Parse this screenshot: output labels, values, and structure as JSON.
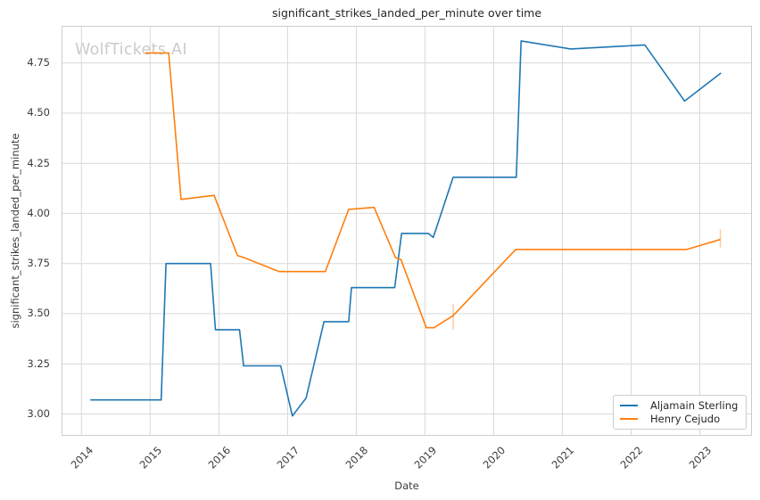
{
  "figure": {
    "watermark": "WolfTickets.AI"
  },
  "colors": {
    "background": "#ffffff",
    "grid": "#d9d9d9",
    "spine": "#cccccc",
    "title_text": "#262626",
    "tick_text": "#3b3b3b",
    "watermark": "#cbcbcb",
    "series_blue": "#1f77b4",
    "series_orange": "#ff7f0e"
  },
  "chart_data": {
    "type": "line",
    "title": "significant_strikes_landed_per_minute over time",
    "xlabel": "Date",
    "ylabel": "significant_strikes_landed_per_minute",
    "grid": true,
    "legend_position": "lower right",
    "x_ticks": [
      2014,
      2015,
      2016,
      2017,
      2018,
      2019,
      2020,
      2021,
      2022,
      2023
    ],
    "y_ticks": [
      "3.00",
      "3.25",
      "3.50",
      "3.75",
      "4.00",
      "4.25",
      "4.50",
      "4.75"
    ],
    "x_range": [
      2013.71,
      2023.76
    ],
    "y_range": [
      2.891,
      4.935
    ],
    "series": [
      {
        "name": "Aljamain Sterling",
        "color": "#1f77b4",
        "points": [
          [
            2014.13,
            3.07
          ],
          [
            2015.16,
            3.07
          ],
          [
            2015.23,
            3.75
          ],
          [
            2015.88,
            3.75
          ],
          [
            2015.95,
            3.42
          ],
          [
            2016.3,
            3.42
          ],
          [
            2016.36,
            3.24
          ],
          [
            2016.9,
            3.24
          ],
          [
            2017.07,
            2.99
          ],
          [
            2017.27,
            3.08
          ],
          [
            2017.53,
            3.46
          ],
          [
            2017.89,
            3.46
          ],
          [
            2017.93,
            3.63
          ],
          [
            2018.56,
            3.63
          ],
          [
            2018.66,
            3.9
          ],
          [
            2019.05,
            3.9
          ],
          [
            2019.12,
            3.88
          ],
          [
            2019.41,
            4.18
          ],
          [
            2020.33,
            4.18
          ],
          [
            2020.4,
            4.86
          ],
          [
            2021.12,
            4.82
          ],
          [
            2022.2,
            4.84
          ],
          [
            2022.78,
            4.56
          ],
          [
            2023.31,
            4.7
          ]
        ],
        "error_bars": []
      },
      {
        "name": "Henry Cejudo",
        "color": "#ff7f0e",
        "points": [
          [
            2014.93,
            4.8
          ],
          [
            2015.27,
            4.8
          ],
          [
            2015.45,
            4.07
          ],
          [
            2015.93,
            4.09
          ],
          [
            2016.27,
            3.79
          ],
          [
            2016.36,
            3.78
          ],
          [
            2016.88,
            3.71
          ],
          [
            2017.55,
            3.71
          ],
          [
            2017.89,
            4.02
          ],
          [
            2018.26,
            4.03
          ],
          [
            2018.57,
            3.78
          ],
          [
            2018.65,
            3.77
          ],
          [
            2019.02,
            3.43
          ],
          [
            2019.13,
            3.43
          ],
          [
            2019.41,
            3.49
          ],
          [
            2020.32,
            3.82
          ],
          [
            2022.81,
            3.82
          ],
          [
            2023.3,
            3.87
          ]
        ],
        "error_bars": [
          {
            "x": 2019.41,
            "low": 3.42,
            "high": 3.55
          },
          {
            "x": 2023.3,
            "low": 3.83,
            "high": 3.92
          }
        ]
      }
    ]
  }
}
